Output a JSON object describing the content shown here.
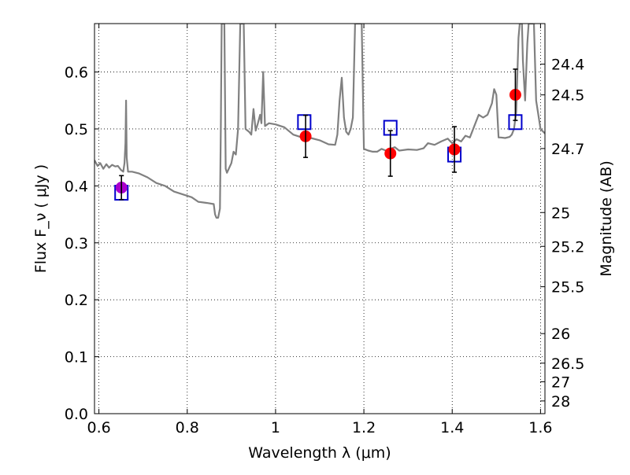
{
  "chart_data": {
    "type": "scatter",
    "xlabel": "Wavelength  λ (μm)",
    "ylabel": "Flux  F_ν  ( μJy )",
    "ylabel_right": "Magnitude (AB)",
    "xlim": [
      0.59,
      1.61
    ],
    "ylim": [
      0.0,
      0.685
    ],
    "grid": true,
    "x_ticks": [
      0.6,
      0.8,
      1.0,
      1.2,
      1.4,
      1.6
    ],
    "x_tick_labels": [
      "0.6",
      "0.8",
      "1",
      "1.2",
      "1.4",
      "1.6"
    ],
    "y_ticks": [
      0.0,
      0.1,
      0.2,
      0.3,
      0.4,
      0.5,
      0.6
    ],
    "y_tick_labels": [
      "0.0",
      "0.1",
      "0.2",
      "0.3",
      "0.4",
      "0.5",
      "0.6"
    ],
    "right_ticks": [
      {
        "label": "24.4",
        "flux": 0.6138
      },
      {
        "label": "24.5",
        "flux": 0.5598
      },
      {
        "label": "24.7",
        "flux": 0.4656
      },
      {
        "label": "25",
        "flux": 0.3532
      },
      {
        "label": "25.2",
        "flux": 0.2938
      },
      {
        "label": "25.5",
        "flux": 0.2229
      },
      {
        "label": "26",
        "flux": 0.1406
      },
      {
        "label": "26.5",
        "flux": 0.0887
      },
      {
        "label": "27",
        "flux": 0.056
      },
      {
        "label": "28",
        "flux": 0.0223
      }
    ],
    "series": [
      {
        "kind": "line",
        "color": "#808080",
        "points": [
          [
            0.59,
            0.445
          ],
          [
            0.597,
            0.435
          ],
          [
            0.603,
            0.44
          ],
          [
            0.61,
            0.43
          ],
          [
            0.617,
            0.438
          ],
          [
            0.623,
            0.432
          ],
          [
            0.63,
            0.437
          ],
          [
            0.637,
            0.434
          ],
          [
            0.643,
            0.435
          ],
          [
            0.65,
            0.428
          ],
          [
            0.655,
            0.425
          ],
          [
            0.658,
            0.44
          ],
          [
            0.66,
            0.475
          ],
          [
            0.6615,
            0.55
          ],
          [
            0.663,
            0.45
          ],
          [
            0.666,
            0.425
          ],
          [
            0.675,
            0.425
          ],
          [
            0.69,
            0.422
          ],
          [
            0.71,
            0.415
          ],
          [
            0.73,
            0.405
          ],
          [
            0.75,
            0.4
          ],
          [
            0.77,
            0.39
          ],
          [
            0.79,
            0.385
          ],
          [
            0.81,
            0.38
          ],
          [
            0.825,
            0.372
          ],
          [
            0.845,
            0.37
          ],
          [
            0.86,
            0.368
          ],
          [
            0.863,
            0.35
          ],
          [
            0.866,
            0.344
          ],
          [
            0.87,
            0.344
          ],
          [
            0.874,
            0.36
          ],
          [
            0.876,
            0.5
          ],
          [
            0.878,
            0.685
          ],
          [
            0.884,
            0.685
          ],
          [
            0.887,
            0.43
          ],
          [
            0.89,
            0.423
          ],
          [
            0.9,
            0.44
          ],
          [
            0.905,
            0.46
          ],
          [
            0.91,
            0.455
          ],
          [
            0.915,
            0.5
          ],
          [
            0.92,
            0.685
          ],
          [
            0.928,
            0.685
          ],
          [
            0.932,
            0.5
          ],
          [
            0.94,
            0.495
          ],
          [
            0.945,
            0.49
          ],
          [
            0.95,
            0.535
          ],
          [
            0.955,
            0.497
          ],
          [
            0.96,
            0.51
          ],
          [
            0.965,
            0.525
          ],
          [
            0.968,
            0.51
          ],
          [
            0.972,
            0.6
          ],
          [
            0.976,
            0.505
          ],
          [
            0.985,
            0.51
          ],
          [
            1.0,
            0.508
          ],
          [
            1.02,
            0.503
          ],
          [
            1.04,
            0.49
          ],
          [
            1.06,
            0.485
          ],
          [
            1.08,
            0.484
          ],
          [
            1.1,
            0.48
          ],
          [
            1.12,
            0.473
          ],
          [
            1.135,
            0.472
          ],
          [
            1.14,
            0.49
          ],
          [
            1.145,
            0.55
          ],
          [
            1.15,
            0.59
          ],
          [
            1.155,
            0.52
          ],
          [
            1.16,
            0.495
          ],
          [
            1.165,
            0.49
          ],
          [
            1.17,
            0.5
          ],
          [
            1.175,
            0.52
          ],
          [
            1.18,
            0.685
          ],
          [
            1.195,
            0.685
          ],
          [
            1.2,
            0.465
          ],
          [
            1.21,
            0.462
          ],
          [
            1.22,
            0.46
          ],
          [
            1.23,
            0.46
          ],
          [
            1.24,
            0.465
          ],
          [
            1.25,
            0.462
          ],
          [
            1.26,
            0.465
          ],
          [
            1.27,
            0.468
          ],
          [
            1.28,
            0.462
          ],
          [
            1.3,
            0.464
          ],
          [
            1.32,
            0.463
          ],
          [
            1.335,
            0.466
          ],
          [
            1.345,
            0.475
          ],
          [
            1.36,
            0.472
          ],
          [
            1.375,
            0.478
          ],
          [
            1.39,
            0.483
          ],
          [
            1.4,
            0.475
          ],
          [
            1.41,
            0.482
          ],
          [
            1.42,
            0.478
          ],
          [
            1.43,
            0.488
          ],
          [
            1.44,
            0.485
          ],
          [
            1.45,
            0.505
          ],
          [
            1.46,
            0.525
          ],
          [
            1.47,
            0.52
          ],
          [
            1.48,
            0.525
          ],
          [
            1.49,
            0.545
          ],
          [
            1.495,
            0.57
          ],
          [
            1.5,
            0.56
          ],
          [
            1.505,
            0.485
          ],
          [
            1.51,
            0.485
          ],
          [
            1.52,
            0.484
          ],
          [
            1.53,
            0.486
          ],
          [
            1.535,
            0.49
          ],
          [
            1.54,
            0.5
          ],
          [
            1.545,
            0.53
          ],
          [
            1.55,
            0.66
          ],
          [
            1.553,
            0.685
          ],
          [
            1.558,
            0.685
          ],
          [
            1.56,
            0.62
          ],
          [
            1.565,
            0.55
          ],
          [
            1.57,
            0.65
          ],
          [
            1.573,
            0.685
          ],
          [
            1.585,
            0.685
          ],
          [
            1.59,
            0.55
          ],
          [
            1.6,
            0.5
          ],
          [
            1.61,
            0.492
          ]
        ]
      },
      {
        "kind": "hollow-square",
        "color": "#0000cc",
        "points": [
          [
            0.651,
            0.388
          ],
          [
            1.065,
            0.512
          ],
          [
            1.26,
            0.502
          ],
          [
            1.405,
            0.455
          ],
          [
            1.543,
            0.512
          ]
        ]
      },
      {
        "kind": "errorbar-point",
        "color": "#ff0000",
        "points": [
          [
            1.068,
            0.487,
            0.037
          ],
          [
            1.26,
            0.457,
            0.04
          ],
          [
            1.405,
            0.464,
            0.04
          ],
          [
            1.543,
            0.56,
            0.045
          ]
        ]
      },
      {
        "kind": "errorbar-point",
        "color": "#aa00cc",
        "points": [
          [
            0.651,
            0.397,
            0.021
          ]
        ]
      }
    ]
  }
}
